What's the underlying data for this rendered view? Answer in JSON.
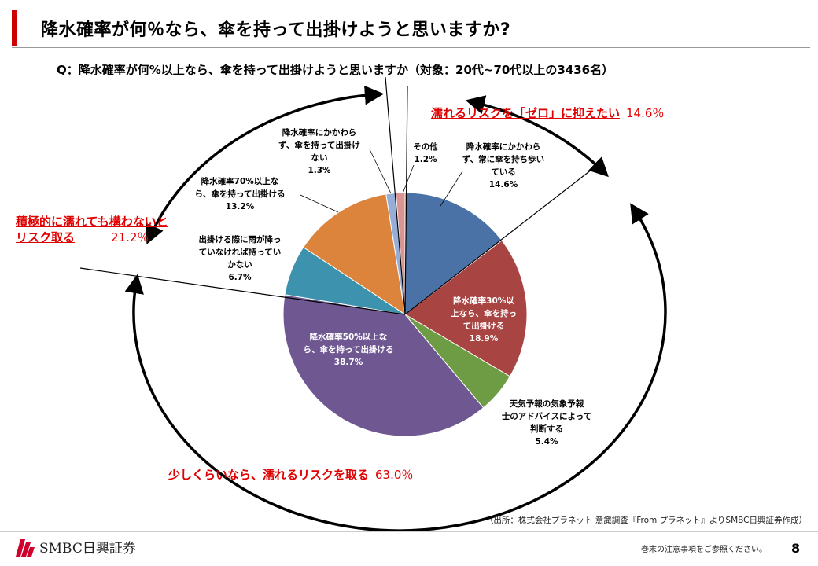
{
  "header": {
    "title": "降水確率が何％なら、傘を持って出掛けようと思いますか?",
    "accent_color": "#cc0000"
  },
  "question": "Q：降水確率が何%以上なら、傘を持って出掛けようと思いますか（対象：20代~70代以上の3436名）",
  "chart_data": {
    "type": "pie",
    "title": "",
    "start_angle_deg": 0,
    "direction": "clockwise",
    "slices": [
      {
        "label": [
          "降水確率にかかわら",
          "ず、常に傘を持ち歩い",
          "ている"
        ],
        "value": 14.6,
        "value_label": "14.6%",
        "color": "#4a72a6"
      },
      {
        "label": [
          "降水確率30%以",
          "上なら、傘を持っ",
          "て出掛ける"
        ],
        "value": 18.9,
        "value_label": "18.9%",
        "color": "#a84543"
      },
      {
        "label": [
          "天気予報の気象予報",
          "士のアドバイスによって",
          "判断する"
        ],
        "value": 5.4,
        "value_label": "5.4%",
        "color": "#6e9c45"
      },
      {
        "label": [
          "降水確率50%以上な",
          "ら、傘を持って出掛ける"
        ],
        "value": 38.7,
        "value_label": "38.7%",
        "color": "#6f5891"
      },
      {
        "label": [
          "出掛ける際に雨が降っ",
          "ていなければ持ってい",
          "かない"
        ],
        "value": 6.7,
        "value_label": "6.7%",
        "color": "#3d93ad"
      },
      {
        "label": [
          "降水確率70%以上な",
          "ら、傘を持って出掛ける"
        ],
        "value": 13.2,
        "value_label": "13.2%",
        "color": "#dc843c"
      },
      {
        "label": [
          "降水確率にかかわら",
          "ず、傘を持って出掛け",
          "ない"
        ],
        "value": 1.3,
        "value_label": "1.3%",
        "color": "#96aed7"
      },
      {
        "label": [
          "その他"
        ],
        "value": 1.2,
        "value_label": "1.2%",
        "color": "#d99592"
      }
    ]
  },
  "groups": [
    {
      "id": "zero",
      "text": "濡れるリスクを「ゼロ」に抑えたい",
      "pct": "14.6％"
    },
    {
      "id": "active_lines",
      "text": [
        "積極的に濡れても構わないと",
        "リスク取る"
      ],
      "pct": "21.2％"
    },
    {
      "id": "little",
      "text": "少しくらいなら、濡れるリスクを取る",
      "pct": "63.0％"
    }
  ],
  "source": "（出所：株式会社プラネット 意識調査『From プラネット』よりSMBC日興証券作成）",
  "footer": {
    "company": "SMBC日興証券",
    "notice": "巻末の注意事項をご参照ください。",
    "page": "8",
    "logo_color": "#d0002c"
  }
}
